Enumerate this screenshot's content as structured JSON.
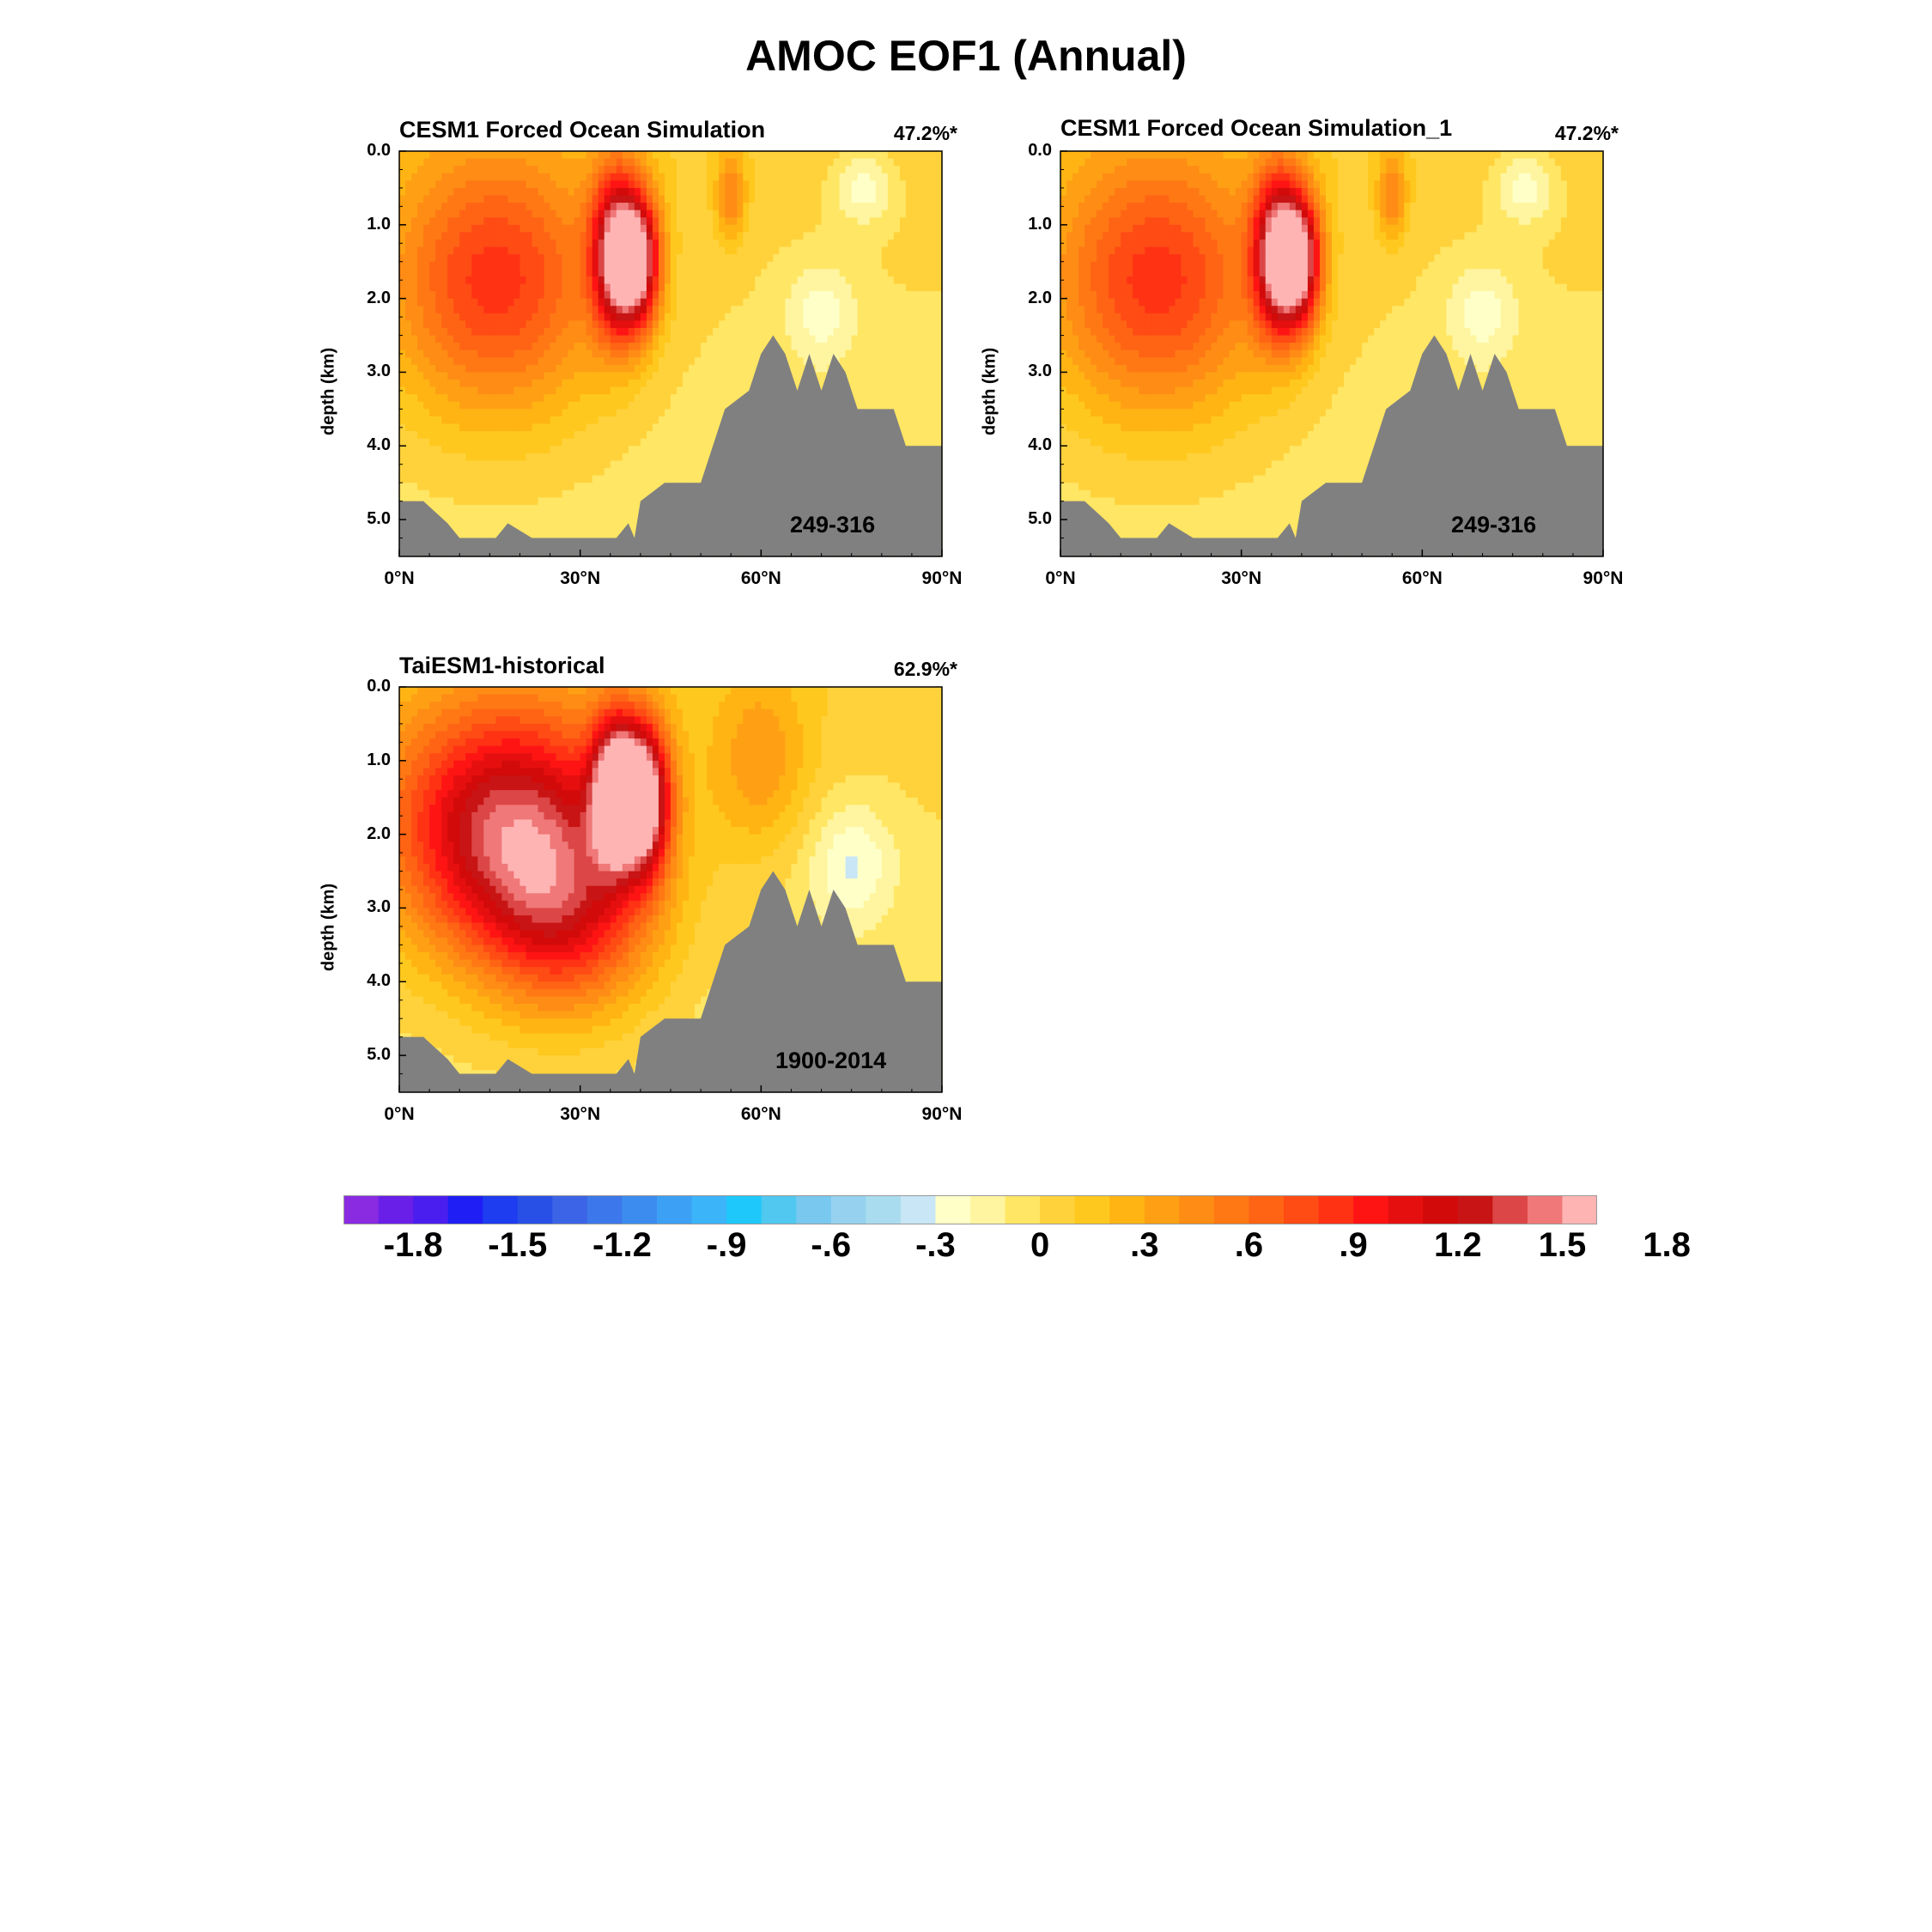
{
  "figure": {
    "title": "AMOC EOF1 (Annual)"
  },
  "chart_data": [
    {
      "type": "heatmap",
      "title": "CESM1 Forced Ocean Simulation",
      "explained_variance": "47.2%*",
      "period": "249-316",
      "ylabel": "depth (km)",
      "xlabel": "",
      "x_tick_labels": [
        "0°N",
        "30°N",
        "60°N",
        "90°N"
      ],
      "y_tick_labels": [
        "0.0",
        "1.0",
        "2.0",
        "3.0",
        "4.0",
        "5.0"
      ],
      "xlim": [
        0,
        90
      ],
      "ylim": [
        5.5,
        0
      ],
      "features": [
        {
          "lat": 16,
          "depth": 1.8,
          "value": 0.85,
          "lat_scale": 18,
          "depth_scale": 1.8
        },
        {
          "lat": 36,
          "depth": 1.4,
          "value": 1.45,
          "lat_scale": 4,
          "depth_scale": 1.1
        },
        {
          "lat": 40,
          "depth": 1.5,
          "value": 1.25,
          "lat_scale": 3.5,
          "depth_scale": 0.9
        },
        {
          "lat": 55,
          "depth": 0.6,
          "value": 0.45,
          "lat_scale": 2.5,
          "depth_scale": 0.6
        },
        {
          "lat": 77,
          "depth": 0.5,
          "value": -0.3,
          "lat_scale": 5,
          "depth_scale": 0.5
        },
        {
          "lat": 70,
          "depth": 2.2,
          "value": -0.25,
          "lat_scale": 6,
          "depth_scale": 0.7
        }
      ],
      "bathymetry": [
        [
          0,
          4.75
        ],
        [
          4,
          4.75
        ],
        [
          8,
          5.05
        ],
        [
          10,
          5.25
        ],
        [
          16,
          5.25
        ],
        [
          18,
          5.05
        ],
        [
          22,
          5.25
        ],
        [
          36,
          5.25
        ],
        [
          38,
          5.05
        ],
        [
          39,
          5.25
        ],
        [
          40,
          4.75
        ],
        [
          44,
          4.5
        ],
        [
          50,
          4.5
        ],
        [
          52,
          4.0
        ],
        [
          54,
          3.5
        ],
        [
          58,
          3.25
        ],
        [
          60,
          2.75
        ],
        [
          62,
          2.5
        ],
        [
          64,
          2.75
        ],
        [
          66,
          3.25
        ],
        [
          68,
          2.75
        ],
        [
          70,
          3.25
        ],
        [
          72,
          2.75
        ],
        [
          74,
          3.0
        ],
        [
          76,
          3.5
        ],
        [
          82,
          3.5
        ],
        [
          84,
          4.0
        ],
        [
          90,
          4.0
        ]
      ]
    },
    {
      "type": "heatmap",
      "title": "CESM1 Forced Ocean Simulation_1",
      "explained_variance": "47.2%*",
      "period": "249-316",
      "ylabel": "depth (km)",
      "xlabel": "",
      "x_tick_labels": [
        "0°N",
        "30°N",
        "60°N",
        "90°N"
      ],
      "y_tick_labels": [
        "0.0",
        "1.0",
        "2.0",
        "3.0",
        "4.0",
        "5.0"
      ],
      "xlim": [
        0,
        90
      ],
      "ylim": [
        5.5,
        0
      ],
      "features": [
        {
          "lat": 16,
          "depth": 1.8,
          "value": 0.85,
          "lat_scale": 18,
          "depth_scale": 1.8
        },
        {
          "lat": 36,
          "depth": 1.4,
          "value": 1.45,
          "lat_scale": 4,
          "depth_scale": 1.1
        },
        {
          "lat": 40,
          "depth": 1.5,
          "value": 1.25,
          "lat_scale": 3.5,
          "depth_scale": 0.9
        },
        {
          "lat": 55,
          "depth": 0.6,
          "value": 0.45,
          "lat_scale": 2.5,
          "depth_scale": 0.6
        },
        {
          "lat": 77,
          "depth": 0.5,
          "value": -0.3,
          "lat_scale": 5,
          "depth_scale": 0.5
        },
        {
          "lat": 70,
          "depth": 2.2,
          "value": -0.25,
          "lat_scale": 6,
          "depth_scale": 0.7
        }
      ],
      "bathymetry": [
        [
          0,
          4.75
        ],
        [
          4,
          4.75
        ],
        [
          8,
          5.05
        ],
        [
          10,
          5.25
        ],
        [
          16,
          5.25
        ],
        [
          18,
          5.05
        ],
        [
          22,
          5.25
        ],
        [
          36,
          5.25
        ],
        [
          38,
          5.05
        ],
        [
          39,
          5.25
        ],
        [
          40,
          4.75
        ],
        [
          44,
          4.5
        ],
        [
          50,
          4.5
        ],
        [
          52,
          4.0
        ],
        [
          54,
          3.5
        ],
        [
          58,
          3.25
        ],
        [
          60,
          2.75
        ],
        [
          62,
          2.5
        ],
        [
          64,
          2.75
        ],
        [
          66,
          3.25
        ],
        [
          68,
          2.75
        ],
        [
          70,
          3.25
        ],
        [
          72,
          2.75
        ],
        [
          74,
          3.0
        ],
        [
          76,
          3.5
        ],
        [
          82,
          3.5
        ],
        [
          84,
          4.0
        ],
        [
          90,
          4.0
        ]
      ]
    },
    {
      "type": "heatmap",
      "title": "TaiESM1-historical",
      "explained_variance": "62.9%*",
      "period": "1900-2014",
      "ylabel": "depth (km)",
      "xlabel": "",
      "x_tick_labels": [
        "0°N",
        "30°N",
        "60°N",
        "90°N"
      ],
      "y_tick_labels": [
        "0.0",
        "1.0",
        "2.0",
        "3.0",
        "4.0",
        "5.0"
      ],
      "xlim": [
        0,
        90
      ],
      "ylim": [
        5.5,
        0
      ],
      "features": [
        {
          "lat": 18,
          "depth": 1.9,
          "value": 1.35,
          "lat_scale": 20,
          "depth_scale": 1.7
        },
        {
          "lat": 36,
          "depth": 1.4,
          "value": 1.5,
          "lat_scale": 4,
          "depth_scale": 1.0
        },
        {
          "lat": 41,
          "depth": 1.5,
          "value": 1.4,
          "lat_scale": 4,
          "depth_scale": 1.0
        },
        {
          "lat": 28,
          "depth": 3.2,
          "value": 0.7,
          "lat_scale": 14,
          "depth_scale": 1.3
        },
        {
          "lat": 60,
          "depth": 1.0,
          "value": 0.35,
          "lat_scale": 8,
          "depth_scale": 1.2
        },
        {
          "lat": 75,
          "depth": 2.4,
          "value": -0.3,
          "lat_scale": 7,
          "depth_scale": 0.8
        }
      ],
      "bathymetry": [
        [
          0,
          4.75
        ],
        [
          4,
          4.75
        ],
        [
          8,
          5.05
        ],
        [
          10,
          5.25
        ],
        [
          16,
          5.25
        ],
        [
          18,
          5.05
        ],
        [
          22,
          5.25
        ],
        [
          36,
          5.25
        ],
        [
          38,
          5.05
        ],
        [
          39,
          5.25
        ],
        [
          40,
          4.75
        ],
        [
          44,
          4.5
        ],
        [
          50,
          4.5
        ],
        [
          52,
          4.0
        ],
        [
          54,
          3.5
        ],
        [
          58,
          3.25
        ],
        [
          60,
          2.75
        ],
        [
          62,
          2.5
        ],
        [
          64,
          2.75
        ],
        [
          66,
          3.25
        ],
        [
          68,
          2.75
        ],
        [
          70,
          3.25
        ],
        [
          72,
          2.75
        ],
        [
          74,
          3.0
        ],
        [
          76,
          3.5
        ],
        [
          82,
          3.5
        ],
        [
          84,
          4.0
        ],
        [
          90,
          4.0
        ]
      ]
    }
  ],
  "colorbar": {
    "labels": [
      "-1.8",
      "-1.5",
      "-1.2",
      "-.9",
      "-.6",
      "-.3",
      "0",
      ".3",
      ".6",
      ".9",
      "1.2",
      "1.5",
      "1.8"
    ],
    "colors": [
      "#8a2be2",
      "#6a1fe8",
      "#4b1ef0",
      "#1e1ef5",
      "#1e3cf0",
      "#2850e6",
      "#3c64e6",
      "#3c78eb",
      "#3c8cf0",
      "#3ca0f5",
      "#3cb4fa",
      "#1ec8fa",
      "#50c8f0",
      "#78c8f0",
      "#96d2f0",
      "#aadcf0",
      "#c8e6f5",
      "#ffffc8",
      "#fff5a0",
      "#ffe664",
      "#ffd23c",
      "#ffc81e",
      "#ffb414",
      "#ffa014",
      "#ff8c14",
      "#ff7814",
      "#ff6414",
      "#ff4b14",
      "#ff3214",
      "#ff1414",
      "#e60f0f",
      "#d20a0a",
      "#c81414",
      "#dc4646",
      "#f07878",
      "#ffb4b4"
    ]
  }
}
